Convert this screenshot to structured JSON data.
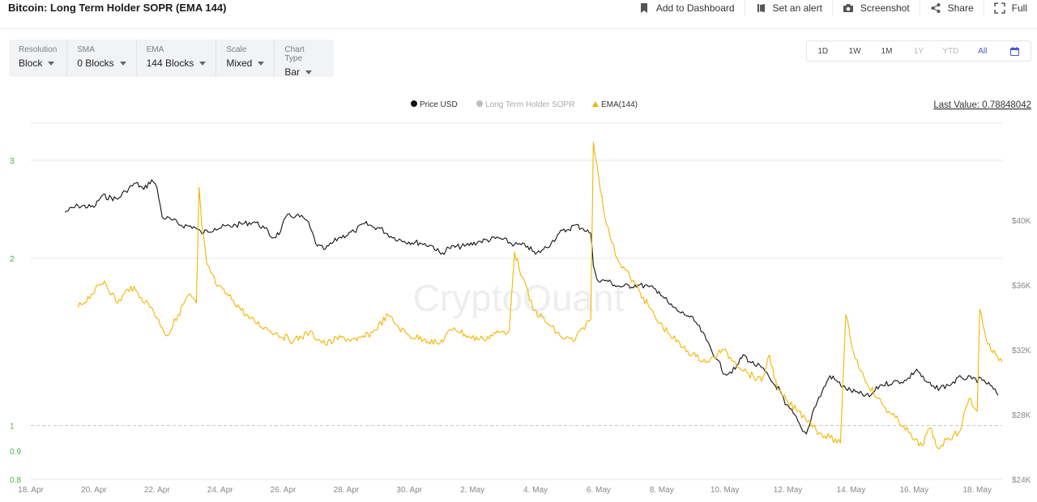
{
  "header": {
    "title": "Bitcoin: Long Term Holder SOPR (EMA 144)",
    "actions": [
      {
        "label": "Add to Dashboard",
        "icon": "bookmark-icon"
      },
      {
        "label": "Set an alert",
        "icon": "bell-icon"
      },
      {
        "label": "Screenshot",
        "icon": "camera-icon"
      },
      {
        "label": "Share",
        "icon": "share-icon"
      },
      {
        "label": "Full",
        "icon": "expand-icon"
      }
    ]
  },
  "controls": [
    {
      "label": "Resolution",
      "value": "Block"
    },
    {
      "label": "SMA",
      "value": "0 Blocks"
    },
    {
      "label": "EMA",
      "value": "144 Blocks"
    },
    {
      "label": "Scale",
      "value": "Mixed"
    },
    {
      "label": "Chart Type",
      "value": "Bar"
    }
  ],
  "ranges": [
    "1D",
    "1W",
    "1M",
    "1Y",
    "YTD",
    "All"
  ],
  "active_range": "All",
  "disabled_ranges": [
    "1Y",
    "YTD"
  ],
  "calendar_icon": "calendar-icon",
  "watermark": "CryptoQuant",
  "colors": {
    "price": "#111111",
    "sopr": "#bdbdbd",
    "ema": "#f4b400",
    "accent": "#4b56d2",
    "left_axis": "#4caf50"
  },
  "chart_data": {
    "type": "line",
    "last_value_label": "Last Value: 0.78848042",
    "legend": [
      {
        "name": "Price USD",
        "color": "#111111"
      },
      {
        "name": "Long Term Holder SOPR",
        "color": "#bdbdbd"
      },
      {
        "name": "EMA(144)",
        "color": "#f4b400"
      }
    ],
    "x_ticks": [
      "18. Apr",
      "20. Apr",
      "22. Apr",
      "24. Apr",
      "26. Apr",
      "28. Apr",
      "30. Apr",
      "2. May",
      "4. May",
      "6. May",
      "8. May",
      "10. May",
      "12. May",
      "14. May",
      "16. May",
      "18. May"
    ],
    "x_range": [
      "2022-04-18",
      "2022-05-18T19:00"
    ],
    "left_axis": {
      "scale": "log",
      "ticks": [
        "3",
        "2",
        "1",
        "0.9",
        "0.8"
      ],
      "range": [
        0.8,
        3.5
      ],
      "reference_line": 1
    },
    "right_axis": {
      "ticks": [
        "$40K",
        "$36K",
        "$32K",
        "$28K",
        "$24K"
      ],
      "range": [
        24000,
        46000
      ]
    },
    "series": [
      {
        "name": "Price USD",
        "axis": "right",
        "points": [
          [
            "2022-04-19T02:00",
            40500
          ],
          [
            "2022-04-19T12:00",
            40900
          ],
          [
            "2022-04-20T00:00",
            40800
          ],
          [
            "2022-04-20T06:00",
            41500
          ],
          [
            "2022-04-20T18:00",
            41300
          ],
          [
            "2022-04-21T00:00",
            41800
          ],
          [
            "2022-04-21T08:00",
            42300
          ],
          [
            "2022-04-21T14:00",
            41900
          ],
          [
            "2022-04-21T20:00",
            42500
          ],
          [
            "2022-04-22T00:00",
            42000
          ],
          [
            "2022-04-22T04:00",
            40200
          ],
          [
            "2022-04-22T12:00",
            40000
          ],
          [
            "2022-04-22T18:00",
            39700
          ],
          [
            "2022-04-23T04:00",
            39600
          ],
          [
            "2022-04-23T10:00",
            39200
          ],
          [
            "2022-04-23T20:00",
            39500
          ],
          [
            "2022-04-24T12:00",
            39700
          ],
          [
            "2022-04-25T02:00",
            39900
          ],
          [
            "2022-04-25T10:00",
            39500
          ],
          [
            "2022-04-25T16:00",
            38900
          ],
          [
            "2022-04-25T22:00",
            39300
          ],
          [
            "2022-04-26T02:00",
            40200
          ],
          [
            "2022-04-26T10:00",
            40300
          ],
          [
            "2022-04-26T18:00",
            40000
          ],
          [
            "2022-04-27T02:00",
            38400
          ],
          [
            "2022-04-27T08:00",
            38200
          ],
          [
            "2022-04-27T18:00",
            38900
          ],
          [
            "2022-04-28T06:00",
            39300
          ],
          [
            "2022-04-28T14:00",
            39800
          ],
          [
            "2022-04-28T20:00",
            39600
          ],
          [
            "2022-04-29T02:00",
            39500
          ],
          [
            "2022-04-29T10:00",
            39000
          ],
          [
            "2022-04-29T20:00",
            38700
          ],
          [
            "2022-04-30T08:00",
            38600
          ],
          [
            "2022-04-30T18:00",
            38400
          ],
          [
            "2022-05-01T00:00",
            37900
          ],
          [
            "2022-05-01T06:00",
            38300
          ],
          [
            "2022-05-01T18:00",
            38400
          ],
          [
            "2022-05-02T06:00",
            38700
          ],
          [
            "2022-05-02T20:00",
            38900
          ],
          [
            "2022-05-03T08:00",
            38500
          ],
          [
            "2022-05-03T18:00",
            38400
          ],
          [
            "2022-05-04T00:00",
            37900
          ],
          [
            "2022-05-04T06:00",
            38200
          ],
          [
            "2022-05-04T12:00",
            38600
          ],
          [
            "2022-05-04T18:00",
            39200
          ],
          [
            "2022-05-05T00:00",
            39400
          ],
          [
            "2022-05-05T06:00",
            39700
          ],
          [
            "2022-05-05T12:00",
            39500
          ],
          [
            "2022-05-05T18:00",
            39200
          ],
          [
            "2022-05-05T20:00",
            37200
          ],
          [
            "2022-05-06T00:00",
            36200
          ],
          [
            "2022-05-06T06:00",
            36300
          ],
          [
            "2022-05-06T12:00",
            36000
          ],
          [
            "2022-05-06T18:00",
            35900
          ],
          [
            "2022-05-07T06:00",
            36000
          ],
          [
            "2022-05-07T14:00",
            35900
          ],
          [
            "2022-05-07T22:00",
            35600
          ],
          [
            "2022-05-08T06:00",
            34800
          ],
          [
            "2022-05-08T12:00",
            34400
          ],
          [
            "2022-05-08T20:00",
            34100
          ],
          [
            "2022-05-09T02:00",
            33700
          ],
          [
            "2022-05-09T10:00",
            32600
          ],
          [
            "2022-05-09T18:00",
            31400
          ],
          [
            "2022-05-10T00:00",
            30500
          ],
          [
            "2022-05-10T08:00",
            30800
          ],
          [
            "2022-05-10T14:00",
            31700
          ],
          [
            "2022-05-10T20:00",
            31200
          ],
          [
            "2022-05-11T04:00",
            30900
          ],
          [
            "2022-05-11T12:00",
            30000
          ],
          [
            "2022-05-11T18:00",
            29500
          ],
          [
            "2022-05-11T22:00",
            28600
          ],
          [
            "2022-05-12T04:00",
            28100
          ],
          [
            "2022-05-12T10:00",
            27200
          ],
          [
            "2022-05-12T14:00",
            26800
          ],
          [
            "2022-05-12T20:00",
            28400
          ],
          [
            "2022-05-13T02:00",
            29400
          ],
          [
            "2022-05-13T08:00",
            30400
          ],
          [
            "2022-05-13T14:00",
            30000
          ],
          [
            "2022-05-13T20:00",
            29600
          ],
          [
            "2022-05-14T06:00",
            29300
          ],
          [
            "2022-05-14T14:00",
            29100
          ],
          [
            "2022-05-14T22:00",
            29800
          ],
          [
            "2022-05-15T08:00",
            30000
          ],
          [
            "2022-05-15T18:00",
            30100
          ],
          [
            "2022-05-16T02:00",
            30800
          ],
          [
            "2022-05-16T08:00",
            30100
          ],
          [
            "2022-05-16T16:00",
            29600
          ],
          [
            "2022-05-17T02:00",
            29800
          ],
          [
            "2022-05-17T12:00",
            30300
          ],
          [
            "2022-05-17T20:00",
            30200
          ],
          [
            "2022-05-18T04:00",
            30100
          ],
          [
            "2022-05-18T10:00",
            29800
          ],
          [
            "2022-05-18T16:00",
            29200
          ]
        ]
      },
      {
        "name": "EMA(144)",
        "axis": "left",
        "points": [
          [
            "2022-04-19T12:00",
            1.63
          ],
          [
            "2022-04-19T22:00",
            1.72
          ],
          [
            "2022-04-20T08:00",
            1.82
          ],
          [
            "2022-04-20T18:00",
            1.66
          ],
          [
            "2022-04-21T04:00",
            1.78
          ],
          [
            "2022-04-21T12:00",
            1.7
          ],
          [
            "2022-04-21T20:00",
            1.63
          ],
          [
            "2022-04-22T04:00",
            1.5
          ],
          [
            "2022-04-22T08:00",
            1.45
          ],
          [
            "2022-04-22T16:00",
            1.58
          ],
          [
            "2022-04-23T00:00",
            1.72
          ],
          [
            "2022-04-23T06:00",
            1.66
          ],
          [
            "2022-04-23T08:00",
            2.68
          ],
          [
            "2022-04-23T10:00",
            2.3
          ],
          [
            "2022-04-23T14:00",
            1.95
          ],
          [
            "2022-04-23T22:00",
            1.78
          ],
          [
            "2022-04-24T10:00",
            1.68
          ],
          [
            "2022-04-24T22:00",
            1.56
          ],
          [
            "2022-04-25T10:00",
            1.5
          ],
          [
            "2022-04-25T20:00",
            1.46
          ],
          [
            "2022-04-26T08:00",
            1.42
          ],
          [
            "2022-04-26T20:00",
            1.47
          ],
          [
            "2022-04-27T08:00",
            1.4
          ],
          [
            "2022-04-27T20:00",
            1.44
          ],
          [
            "2022-04-28T08:00",
            1.42
          ],
          [
            "2022-04-28T20:00",
            1.47
          ],
          [
            "2022-04-29T08:00",
            1.58
          ],
          [
            "2022-04-29T16:00",
            1.5
          ],
          [
            "2022-04-30T00:00",
            1.45
          ],
          [
            "2022-04-30T12:00",
            1.43
          ],
          [
            "2022-04-30T22:00",
            1.4
          ],
          [
            "2022-05-01T10:00",
            1.5
          ],
          [
            "2022-05-01T22:00",
            1.44
          ],
          [
            "2022-05-02T08:00",
            1.43
          ],
          [
            "2022-05-02T20:00",
            1.47
          ],
          [
            "2022-05-03T04:00",
            1.48
          ],
          [
            "2022-05-03T08:00",
            2.05
          ],
          [
            "2022-05-03T14:00",
            1.85
          ],
          [
            "2022-05-03T22:00",
            1.62
          ],
          [
            "2022-05-04T10:00",
            1.52
          ],
          [
            "2022-05-04T20:00",
            1.44
          ],
          [
            "2022-05-05T06:00",
            1.42
          ],
          [
            "2022-05-05T12:00",
            1.5
          ],
          [
            "2022-05-05T18:00",
            1.55
          ],
          [
            "2022-05-05T20:00",
            3.23
          ],
          [
            "2022-05-06T00:00",
            2.8
          ],
          [
            "2022-05-06T06:00",
            2.3
          ],
          [
            "2022-05-06T14:00",
            2.0
          ],
          [
            "2022-05-07T00:00",
            1.85
          ],
          [
            "2022-05-07T10:00",
            1.7
          ],
          [
            "2022-05-07T20:00",
            1.55
          ],
          [
            "2022-05-08T06:00",
            1.46
          ],
          [
            "2022-05-08T16:00",
            1.38
          ],
          [
            "2022-05-09T02:00",
            1.33
          ],
          [
            "2022-05-09T12:00",
            1.3
          ],
          [
            "2022-05-09T22:00",
            1.37
          ],
          [
            "2022-05-10T08:00",
            1.3
          ],
          [
            "2022-05-10T18:00",
            1.24
          ],
          [
            "2022-05-11T04:00",
            1.2
          ],
          [
            "2022-05-11T10:00",
            1.34
          ],
          [
            "2022-05-11T16:00",
            1.16
          ],
          [
            "2022-05-12T00:00",
            1.1
          ],
          [
            "2022-05-12T08:00",
            1.06
          ],
          [
            "2022-05-12T16:00",
            1.02
          ],
          [
            "2022-05-13T00:00",
            0.97
          ],
          [
            "2022-05-13T08:00",
            0.95
          ],
          [
            "2022-05-13T16:00",
            0.93
          ],
          [
            "2022-05-13T20:00",
            1.58
          ],
          [
            "2022-05-14T02:00",
            1.35
          ],
          [
            "2022-05-14T10:00",
            1.22
          ],
          [
            "2022-05-14T20:00",
            1.12
          ],
          [
            "2022-05-15T06:00",
            1.05
          ],
          [
            "2022-05-15T16:00",
            1.0
          ],
          [
            "2022-05-16T00:00",
            0.94
          ],
          [
            "2022-05-16T06:00",
            0.92
          ],
          [
            "2022-05-16T12:00",
            0.99
          ],
          [
            "2022-05-16T18:00",
            0.91
          ],
          [
            "2022-05-17T02:00",
            0.95
          ],
          [
            "2022-05-17T10:00",
            0.97
          ],
          [
            "2022-05-17T18:00",
            1.12
          ],
          [
            "2022-05-18T00:00",
            1.06
          ],
          [
            "2022-05-18T02:00",
            1.62
          ],
          [
            "2022-05-18T08:00",
            1.4
          ],
          [
            "2022-05-18T14:00",
            1.34
          ],
          [
            "2022-05-18T19:00",
            1.3
          ]
        ]
      }
    ]
  }
}
